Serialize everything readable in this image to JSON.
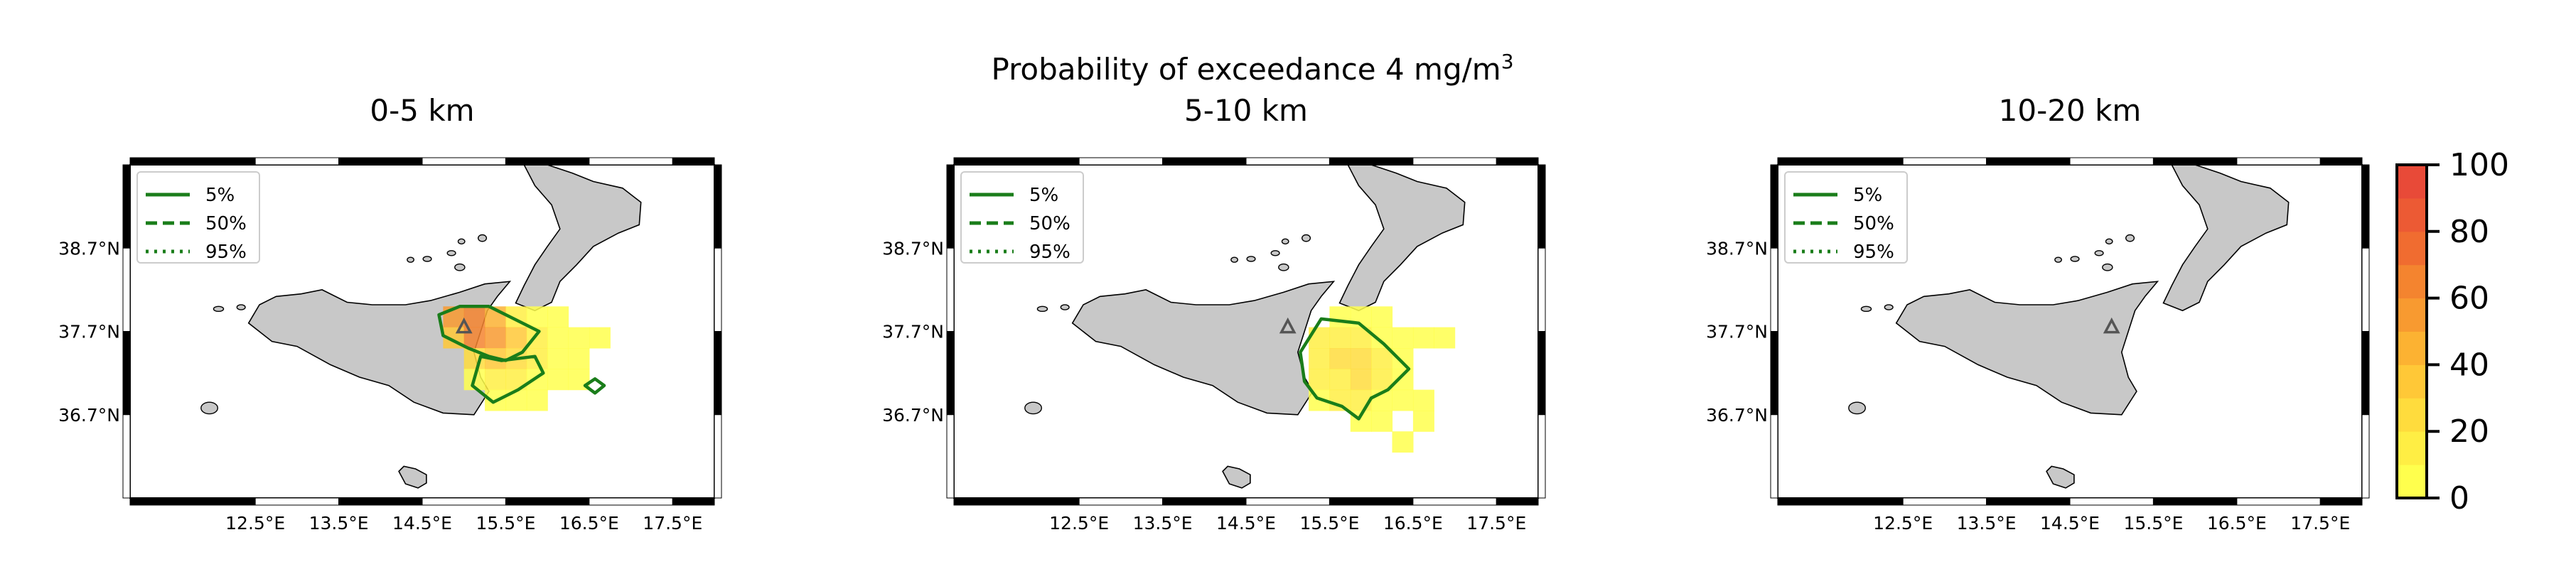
{
  "figure": {
    "suptitle_main": "Probability of exceedance 4 mg/m",
    "suptitle_sup": "3"
  },
  "colors": {
    "land": "#c8c8c8",
    "contour": "#1a7d1a",
    "scale": [
      "#ffff4d",
      "#ffee44",
      "#ffdc3d",
      "#ffc837",
      "#fcb232",
      "#f89a30",
      "#f4842f",
      "#f06c30",
      "#ec5a34",
      "#e84a38"
    ]
  },
  "chart_data": [
    {
      "type": "heatmap",
      "title": "0-5 km",
      "x_tick_labels": [
        "12.5°E",
        "13.5°E",
        "14.5°E",
        "15.5°E",
        "16.5°E",
        "17.5°E"
      ],
      "x_ticks": [
        12.5,
        13.5,
        14.5,
        15.5,
        16.5,
        17.5
      ],
      "y_tick_labels": [
        "38.7°N",
        "37.7°N",
        "36.7°N"
      ],
      "y_ticks": [
        38.7,
        37.7,
        36.7
      ],
      "xlim": [
        11.0,
        18.0
      ],
      "ylim": [
        35.7,
        39.7
      ],
      "legend": [
        "5%",
        "50%",
        "95%"
      ],
      "volcano": [
        15.0,
        37.75
      ],
      "cell_size": 0.25,
      "cells": [
        [
          14.875,
          37.875,
          50
        ],
        [
          15.125,
          37.875,
          65
        ],
        [
          15.375,
          37.875,
          40
        ],
        [
          15.625,
          37.875,
          10
        ],
        [
          15.875,
          37.875,
          5
        ],
        [
          16.125,
          37.875,
          5
        ],
        [
          14.875,
          37.625,
          30
        ],
        [
          15.125,
          37.625,
          60
        ],
        [
          15.375,
          37.625,
          50
        ],
        [
          15.625,
          37.625,
          30
        ],
        [
          15.875,
          37.625,
          10
        ],
        [
          16.125,
          37.625,
          5
        ],
        [
          16.375,
          37.625,
          5
        ],
        [
          16.625,
          37.625,
          5
        ],
        [
          15.125,
          37.375,
          20
        ],
        [
          15.375,
          37.375,
          30
        ],
        [
          15.625,
          37.375,
          20
        ],
        [
          15.875,
          37.375,
          10
        ],
        [
          16.125,
          37.375,
          5
        ],
        [
          16.375,
          37.375,
          5
        ],
        [
          15.125,
          37.125,
          5
        ],
        [
          15.375,
          37.125,
          10
        ],
        [
          15.625,
          37.125,
          10
        ],
        [
          15.875,
          37.125,
          5
        ],
        [
          16.125,
          37.125,
          5
        ],
        [
          16.375,
          37.125,
          5
        ],
        [
          15.375,
          36.875,
          5
        ],
        [
          15.625,
          36.875,
          5
        ],
        [
          15.875,
          36.875,
          5
        ]
      ]
    },
    {
      "type": "heatmap",
      "title": "5-10 km",
      "x_tick_labels": [
        "12.5°E",
        "13.5°E",
        "14.5°E",
        "15.5°E",
        "16.5°E",
        "17.5°E"
      ],
      "x_ticks": [
        12.5,
        13.5,
        14.5,
        15.5,
        16.5,
        17.5
      ],
      "y_tick_labels": [
        "38.7°N",
        "37.7°N",
        "36.7°N"
      ],
      "y_ticks": [
        38.7,
        37.7,
        36.7
      ],
      "xlim": [
        11.0,
        18.0
      ],
      "ylim": [
        35.7,
        39.7
      ],
      "legend": [
        "5%",
        "50%",
        "95%"
      ],
      "volcano": [
        15.0,
        37.75
      ],
      "cell_size": 0.25,
      "cells": [
        [
          15.625,
          37.875,
          5
        ],
        [
          15.875,
          37.875,
          5
        ],
        [
          16.125,
          37.875,
          5
        ],
        [
          15.375,
          37.625,
          10
        ],
        [
          15.625,
          37.625,
          10
        ],
        [
          15.875,
          37.625,
          10
        ],
        [
          16.125,
          37.625,
          5
        ],
        [
          16.375,
          37.625,
          5
        ],
        [
          16.625,
          37.625,
          5
        ],
        [
          16.875,
          37.625,
          5
        ],
        [
          15.375,
          37.375,
          10
        ],
        [
          15.625,
          37.375,
          25
        ],
        [
          15.875,
          37.375,
          20
        ],
        [
          16.125,
          37.375,
          10
        ],
        [
          16.375,
          37.375,
          5
        ],
        [
          15.375,
          37.125,
          10
        ],
        [
          15.625,
          37.125,
          15
        ],
        [
          15.875,
          37.125,
          20
        ],
        [
          16.125,
          37.125,
          10
        ],
        [
          16.375,
          37.125,
          5
        ],
        [
          15.375,
          36.875,
          5
        ],
        [
          15.625,
          36.875,
          10
        ],
        [
          15.875,
          36.875,
          10
        ],
        [
          16.125,
          36.875,
          5
        ],
        [
          16.375,
          36.875,
          5
        ],
        [
          16.625,
          36.875,
          5
        ],
        [
          15.875,
          36.625,
          5
        ],
        [
          16.125,
          36.625,
          5
        ],
        [
          16.625,
          36.625,
          5
        ],
        [
          16.375,
          36.375,
          5
        ]
      ]
    },
    {
      "type": "heatmap",
      "title": "10-20 km",
      "x_tick_labels": [
        "12.5°E",
        "13.5°E",
        "14.5°E",
        "15.5°E",
        "16.5°E",
        "17.5°E"
      ],
      "x_ticks": [
        12.5,
        13.5,
        14.5,
        15.5,
        16.5,
        17.5
      ],
      "y_tick_labels": [
        "38.7°N",
        "37.7°N",
        "36.7°N"
      ],
      "y_ticks": [
        38.7,
        37.7,
        36.7
      ],
      "xlim": [
        11.0,
        18.0
      ],
      "ylim": [
        35.7,
        39.7
      ],
      "legend": [
        "5%",
        "50%",
        "95%"
      ],
      "volcano": [
        15.0,
        37.75
      ],
      "cell_size": 0.25,
      "cells": []
    }
  ],
  "colorbar": {
    "range": [
      0,
      100
    ],
    "tick_values": [
      0,
      20,
      40,
      60,
      80,
      100
    ],
    "tick_labels": [
      "0",
      "20",
      "40",
      "60",
      "80",
      "100"
    ]
  }
}
